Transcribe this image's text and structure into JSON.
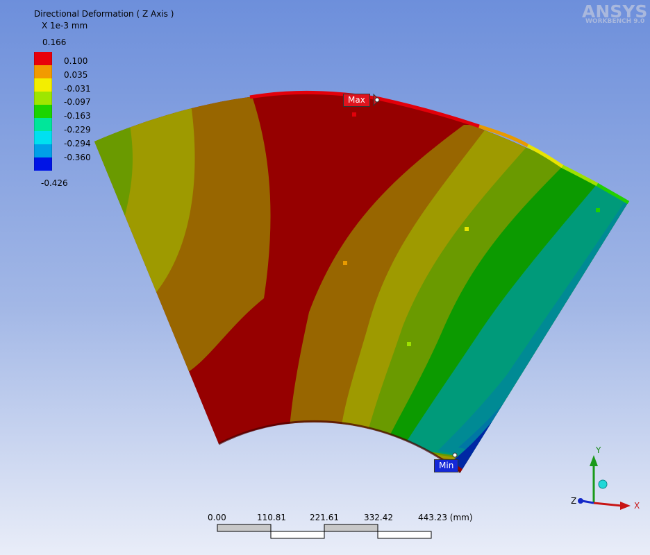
{
  "legend": {
    "title": "Directional Deformation ( Z Axis )",
    "unit": "X 1e-3 mm",
    "max_label": "0.166",
    "min_label": "-0.426",
    "bands": [
      {
        "color": "#e8000a"
      },
      {
        "color": "#f29a00"
      },
      {
        "color": "#f3ee00"
      },
      {
        "color": "#9ee600"
      },
      {
        "color": "#1bd400"
      },
      {
        "color": "#00e69a"
      },
      {
        "color": "#00e0f0"
      },
      {
        "color": "#00a0e8"
      },
      {
        "color": "#0014e6"
      }
    ],
    "labels": [
      "0.100",
      "0.035",
      "-0.031",
      "-0.097",
      "-0.163",
      "-0.229",
      "-0.294",
      "-0.360"
    ]
  },
  "logo": {
    "name": "ANSYS",
    "subtitle": "WORKBENCH 9.0"
  },
  "probes": {
    "max": "Max",
    "min": "Min"
  },
  "scale_bar": {
    "ticks": [
      "0.00",
      "110.81",
      "221.61",
      "332.42",
      "443.23 (mm)"
    ]
  },
  "triad": {
    "x": "X",
    "y": "Y",
    "z": "Z"
  },
  "colors": {
    "band_red": "#960000",
    "band_orange": "#986600",
    "band_yellow": "#9e9a00",
    "band_lime": "#6a9a00",
    "band_green": "#0c9a00",
    "band_teal": "#009a7a",
    "band_blue": "#004aa0"
  }
}
